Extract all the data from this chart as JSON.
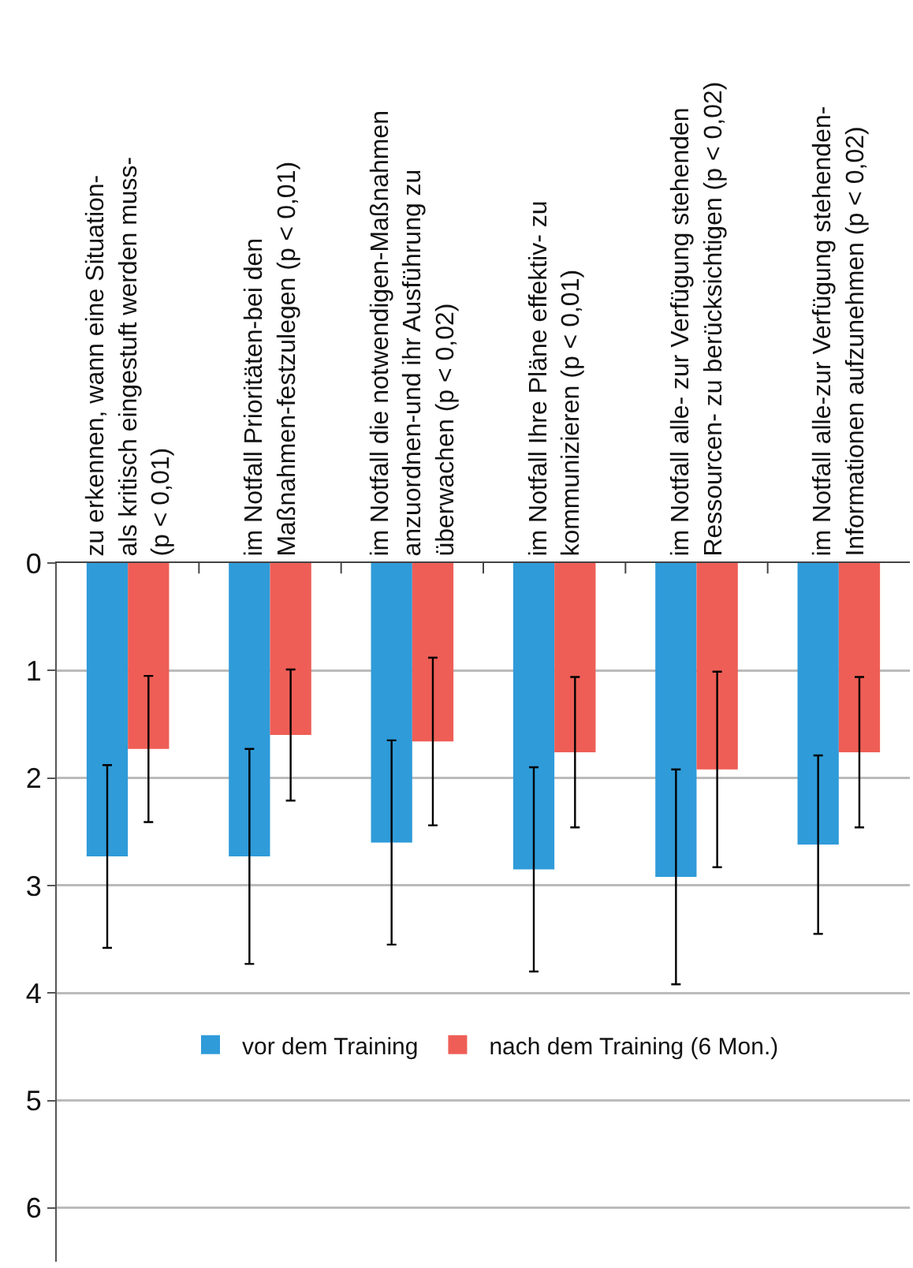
{
  "chart_data": {
    "type": "bar",
    "categories": [
      "zu erkennen, wann eine Situation-\nals kritisch eingestuft werden muss-\n(p < 0,01)",
      "im Notfall Prioritäten-bei den\nMaßnahmen-festzulegen (p < 0,01)",
      "im Notfall die notwendigen-Maßnahmen\nanzuordnen-und ihr Ausführung zu\nüberwachen (p < 0,02)",
      "im Notfall Ihre Pläne effektiv- zu\nkommunizieren (p < 0,01)",
      "im Notfall alle- zur Verfügung stehenden\nRessourcen- zu berücksichtigen (p < 0,02)",
      "im Notfall alle-zur Verfügung stehenden-\nInformationen aufzunehmen (p < 0,02)"
    ],
    "series": [
      {
        "name": "vor dem Training",
        "color": "#2f9bd9",
        "values": [
          2.73,
          2.73,
          2.6,
          2.85,
          2.92,
          2.62
        ],
        "errors": [
          0.85,
          1.0,
          0.95,
          0.95,
          1.0,
          0.83
        ]
      },
      {
        "name": "nach dem Training (6 Mon.)",
        "color": "#ee5e56",
        "values": [
          1.73,
          1.6,
          1.66,
          1.76,
          1.92,
          1.76
        ],
        "errors": [
          0.68,
          0.61,
          0.78,
          0.7,
          0.91,
          0.7
        ]
      }
    ],
    "ylim": [
      6.5,
      0
    ],
    "yticks": [
      0,
      1,
      2,
      3,
      4,
      5,
      6
    ],
    "grid": "y",
    "legend": "bottom"
  }
}
